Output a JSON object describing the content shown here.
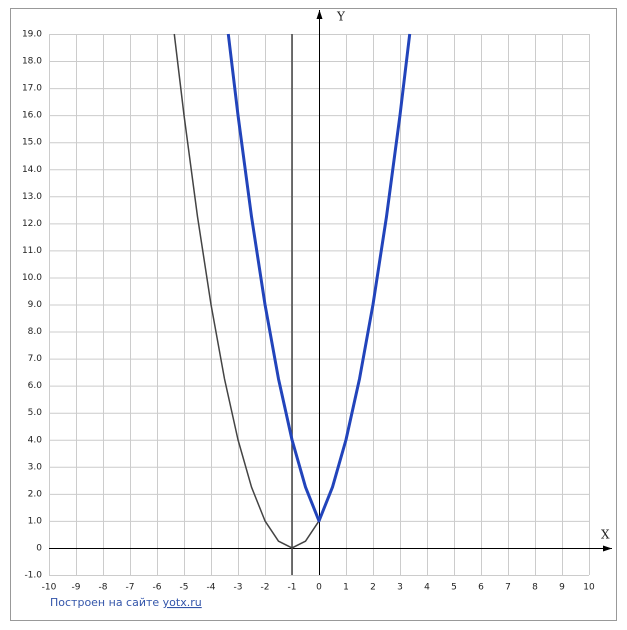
{
  "chart_data": {
    "type": "line",
    "x_label": "X",
    "y_label": "Y",
    "xlim": [
      -10,
      10
    ],
    "ylim": [
      -1,
      19
    ],
    "xticks": [
      -10,
      -9,
      -8,
      -7,
      -6,
      -5,
      -4,
      -3,
      -2,
      -1,
      0,
      1,
      2,
      3,
      4,
      5,
      6,
      7,
      8,
      9,
      10
    ],
    "yticks": [
      {
        "value": -1,
        "label": "-1.0"
      },
      0,
      {
        "value": 1,
        "label": "1.0"
      },
      {
        "value": 2,
        "label": "2.0"
      },
      {
        "value": 3,
        "label": "3.0"
      },
      {
        "value": 4,
        "label": "4.0"
      },
      {
        "value": 5,
        "label": "5.0"
      },
      {
        "value": 6,
        "label": "6.0"
      },
      {
        "value": 7,
        "label": "7.0"
      },
      {
        "value": 8,
        "label": "8.0"
      },
      {
        "value": 9,
        "label": "9.0"
      },
      {
        "value": 10,
        "label": "10.0"
      },
      {
        "value": 11,
        "label": "11.0"
      },
      {
        "value": 12,
        "label": "12.0"
      },
      {
        "value": 13,
        "label": "13.0"
      },
      {
        "value": 14,
        "label": "14.0"
      },
      {
        "value": 15,
        "label": "15.0"
      },
      {
        "value": 16,
        "label": "16.0"
      },
      {
        "value": 17,
        "label": "17.0"
      },
      {
        "value": 18,
        "label": "18.0"
      },
      {
        "value": 19,
        "label": "19.0"
      }
    ],
    "grid": true,
    "vertical_line": {
      "x": -1,
      "color": "#444444"
    },
    "series": [
      {
        "color": "#444444",
        "width": 1.5,
        "x": [
          -5.36,
          -5,
          -4.5,
          -4,
          -3.5,
          -3,
          -2.5,
          -2,
          -1.5,
          -1,
          -0.5,
          0,
          0.5,
          1,
          1.5,
          2,
          2.5,
          3,
          3.36
        ],
        "values": [
          19.0,
          16,
          12.25,
          9,
          6.25,
          4,
          2.25,
          1,
          0.25,
          0,
          0.25,
          1,
          2.25,
          4,
          6.25,
          9,
          12.25,
          16,
          19.0
        ]
      },
      {
        "color": "#2244bb",
        "width": 3,
        "x": [
          -3.36,
          -3,
          -2.5,
          -2,
          -1.5,
          -1,
          -0.5,
          0,
          0.5,
          1,
          1.5,
          2,
          2.5,
          3,
          3.36
        ],
        "values": [
          19.0,
          16,
          12.25,
          9,
          6.25,
          4,
          2.25,
          1,
          2.25,
          4,
          6.25,
          9,
          12.25,
          16,
          19.0
        ]
      }
    ],
    "footer_text": "Построен на сайте",
    "footer_link": "yotx.ru"
  }
}
